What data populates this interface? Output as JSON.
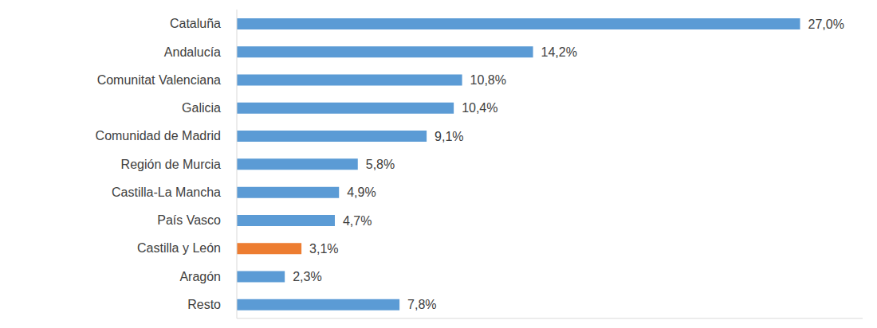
{
  "chart_data": {
    "type": "bar",
    "orientation": "horizontal",
    "categories": [
      "Cataluña",
      "Andalucía",
      "Comunitat Valenciana",
      "Galicia",
      "Comunidad de Madrid",
      "Región de Murcia",
      "Castilla-La Mancha",
      "País Vasco",
      "Castilla y León",
      "Aragón",
      "Resto"
    ],
    "values": [
      27.0,
      14.2,
      10.8,
      10.4,
      9.1,
      5.8,
      4.9,
      4.7,
      3.1,
      2.3,
      7.8
    ],
    "value_labels": [
      "27,0%",
      "14,2%",
      "10,8%",
      "10,4%",
      "9,1%",
      "5,8%",
      "4,9%",
      "4,7%",
      "3,1%",
      "2,3%",
      "7,8%"
    ],
    "colors": [
      "#5b9bd5",
      "#5b9bd5",
      "#5b9bd5",
      "#5b9bd5",
      "#5b9bd5",
      "#5b9bd5",
      "#5b9bd5",
      "#5b9bd5",
      "#ed7d31",
      "#5b9bd5",
      "#5b9bd5"
    ],
    "xlim": [
      0,
      30
    ],
    "xticks": [],
    "data_labels": true,
    "tick_labels": "y",
    "grid": false
  }
}
